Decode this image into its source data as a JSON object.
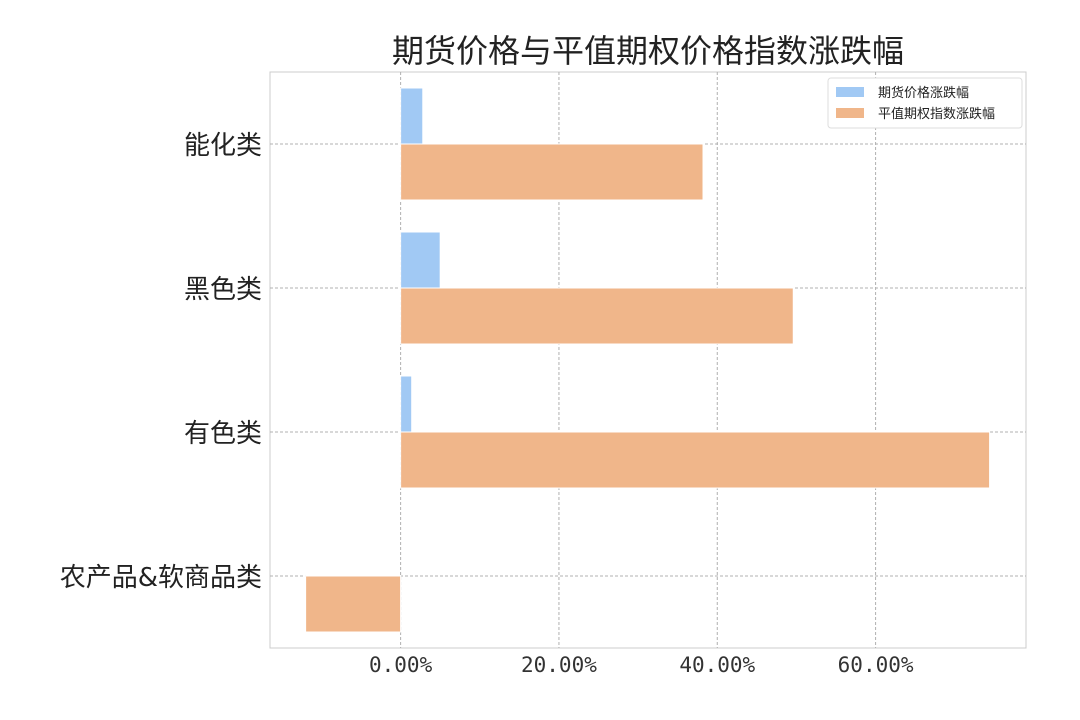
{
  "chart_data": {
    "type": "bar",
    "orientation": "horizontal",
    "title": "期货价格与平值期权价格指数涨跌幅",
    "categories": [
      "能化类",
      "黑色类",
      "有色类",
      "农产品&软商品类"
    ],
    "series": [
      {
        "name": "期货价格涨跌幅",
        "color": "#a1c9f4",
        "values": [
          2.8,
          5.0,
          1.4,
          null
        ]
      },
      {
        "name": "平值期权指数涨跌幅",
        "color": "#f0b68a",
        "values": [
          38.2,
          49.6,
          74.4,
          -12.0
        ]
      }
    ],
    "xticks": [
      "0.00%",
      "20.00%",
      "40.00%",
      "60.00%"
    ],
    "xtick_values": [
      0,
      20,
      40,
      60
    ],
    "xlim": [
      -16.5,
      79
    ],
    "xlabel": "",
    "ylabel": "",
    "grid": true,
    "legend": "top-right"
  }
}
